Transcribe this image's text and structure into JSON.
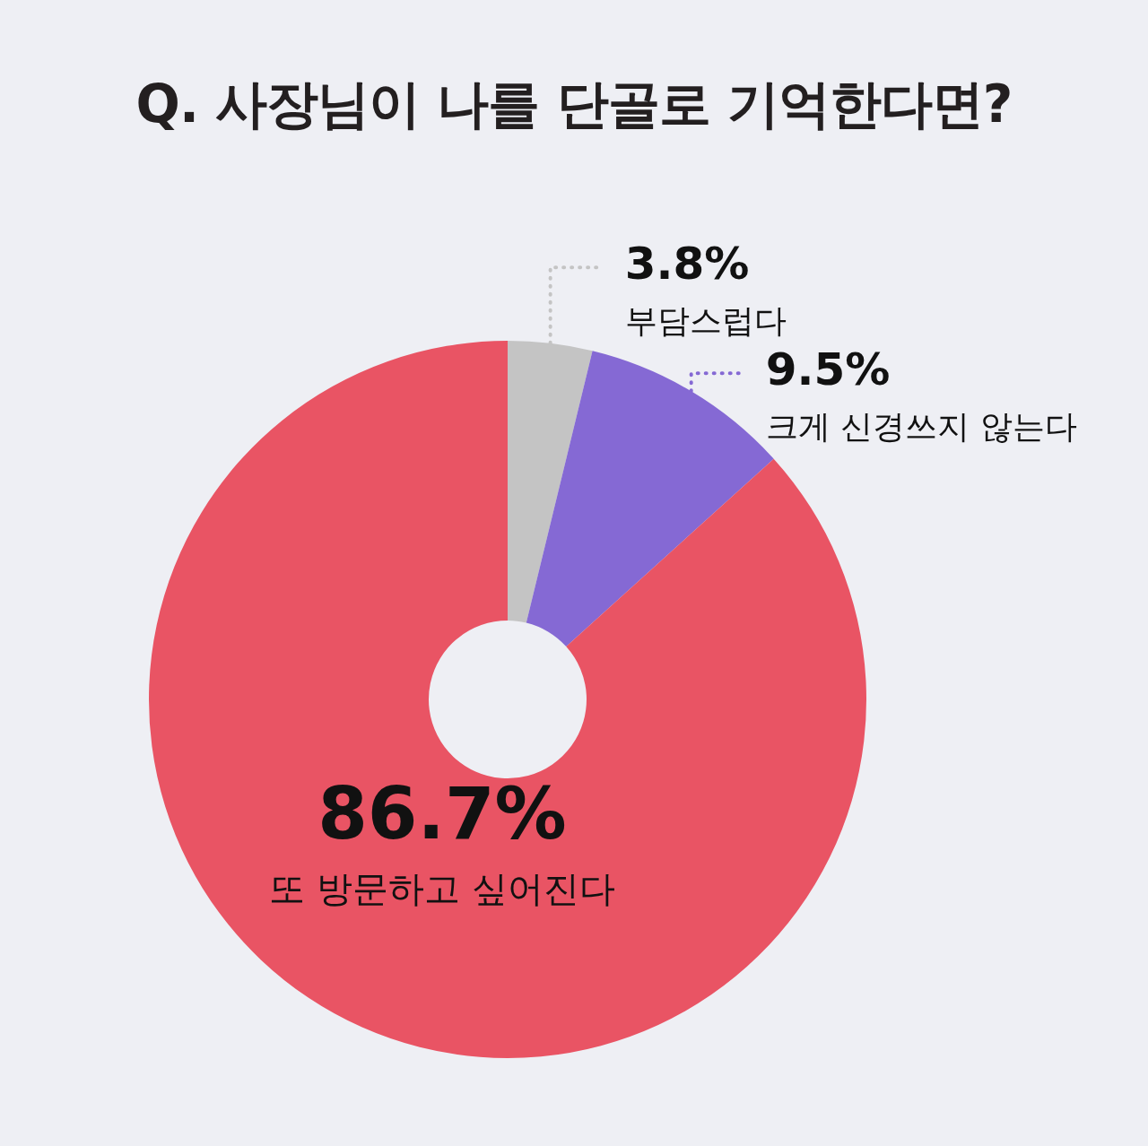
{
  "chart_data": {
    "type": "donut",
    "title": "Q. 사장님이 나를 단골로 기억한다면?",
    "categories": [
      "부담스럽다",
      "크게 신경쓰지 않는다",
      "또 방문하고 싶어진다"
    ],
    "values": [
      3.8,
      9.5,
      86.7
    ],
    "colors": [
      "#c4c4c4",
      "#8569d4",
      "#e95464"
    ],
    "value_labels": [
      "3.8%",
      "9.5%",
      "86.7%"
    ]
  }
}
